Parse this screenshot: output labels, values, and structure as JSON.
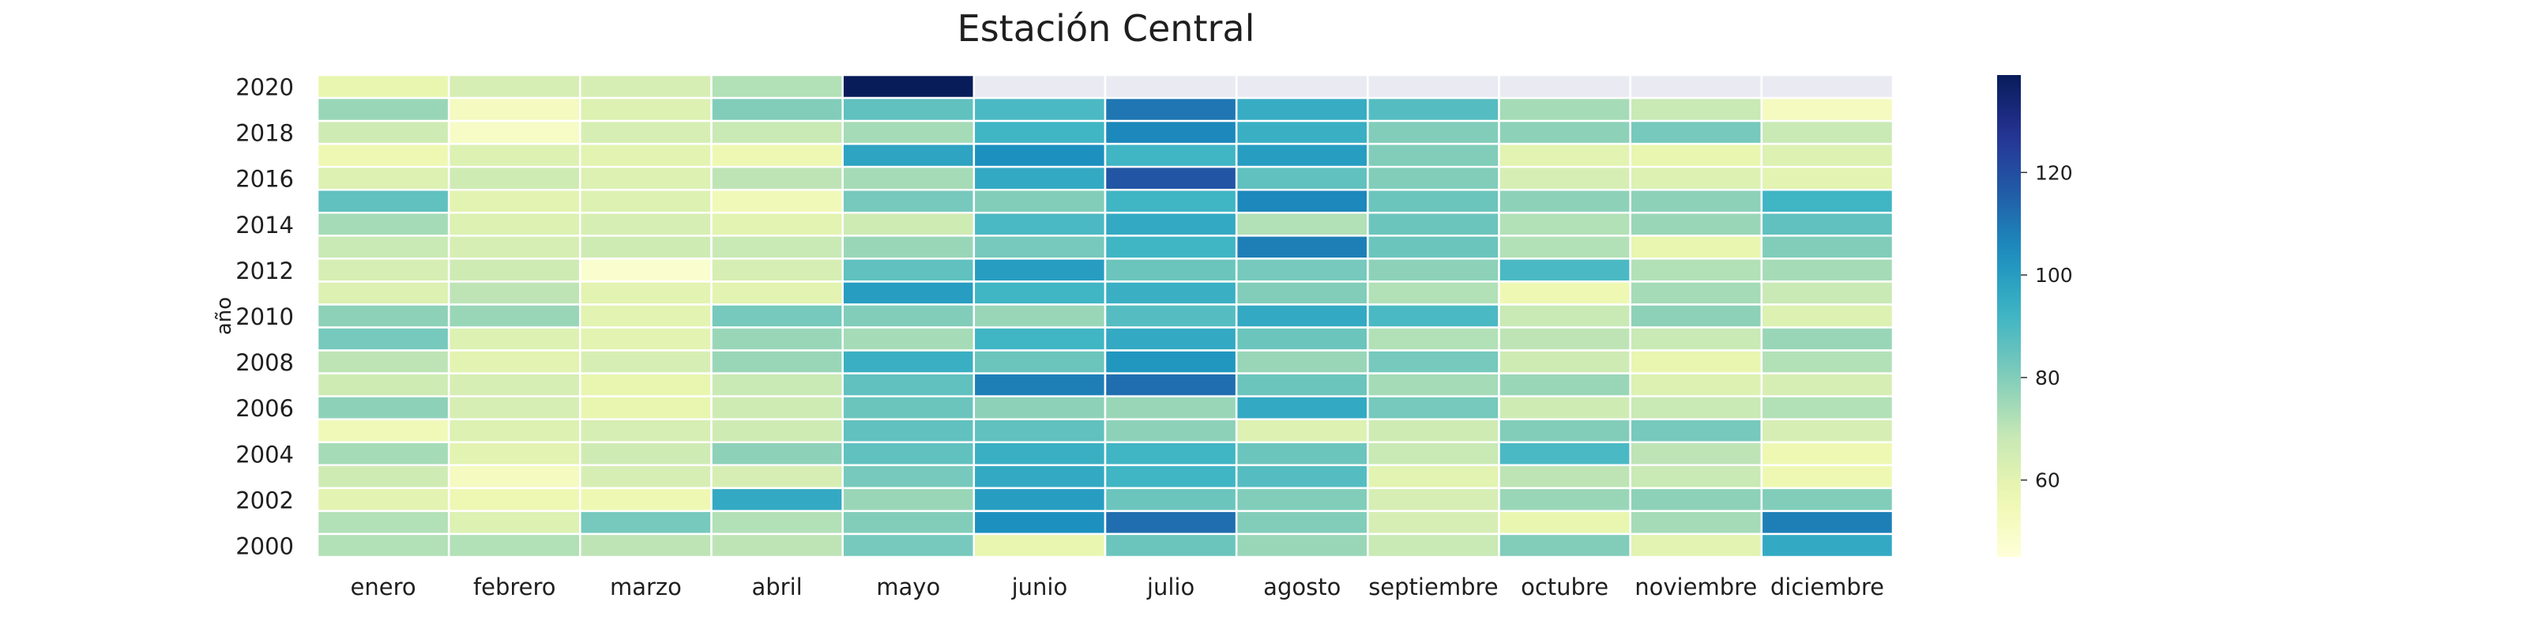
{
  "chart_data": {
    "type": "heatmap",
    "title": "Estación Central",
    "xlabel": "",
    "ylabel": "año",
    "months": [
      "enero",
      "febrero",
      "marzo",
      "abril",
      "mayo",
      "junio",
      "julio",
      "agosto",
      "septiembre",
      "octubre",
      "noviembre",
      "diciembre"
    ],
    "years": [
      2020,
      2019,
      2018,
      2017,
      2016,
      2015,
      2014,
      2013,
      2012,
      2011,
      2010,
      2009,
      2008,
      2007,
      2006,
      2005,
      2004,
      2003,
      2002,
      2001,
      2000
    ],
    "year_tick_labels": [
      "2020",
      "2018",
      "2016",
      "2014",
      "2012",
      "2010",
      "2008",
      "2006",
      "2004",
      "2002",
      "2000"
    ],
    "colormap": "YlGnBu",
    "colorbar": {
      "min": 45,
      "max": 139,
      "ticks": [
        60,
        80,
        100,
        120
      ]
    },
    "values": [
      [
        58,
        64,
        64,
        72,
        139,
        null,
        null,
        null,
        null,
        null,
        null,
        null
      ],
      [
        76,
        52,
        62,
        80,
        86,
        90,
        110,
        95,
        88,
        74,
        68,
        52
      ],
      [
        66,
        50,
        64,
        68,
        74,
        92,
        106,
        94,
        80,
        78,
        82,
        68
      ],
      [
        56,
        62,
        60,
        56,
        98,
        104,
        92,
        100,
        80,
        60,
        58,
        62
      ],
      [
        62,
        66,
        62,
        70,
        74,
        96,
        118,
        86,
        80,
        64,
        62,
        60
      ],
      [
        86,
        60,
        62,
        54,
        82,
        80,
        92,
        106,
        84,
        78,
        78,
        92
      ],
      [
        74,
        62,
        64,
        60,
        66,
        90,
        96,
        72,
        84,
        72,
        76,
        86
      ],
      [
        68,
        64,
        66,
        68,
        76,
        82,
        92,
        108,
        84,
        72,
        58,
        80
      ],
      [
        64,
        66,
        48,
        64,
        86,
        100,
        84,
        82,
        78,
        90,
        72,
        74
      ],
      [
        62,
        70,
        60,
        60,
        100,
        92,
        94,
        80,
        72,
        56,
        74,
        68
      ],
      [
        78,
        76,
        60,
        82,
        80,
        76,
        88,
        96,
        90,
        68,
        78,
        62
      ],
      [
        82,
        62,
        60,
        76,
        74,
        92,
        96,
        84,
        72,
        70,
        68,
        76
      ],
      [
        70,
        60,
        64,
        76,
        94,
        84,
        102,
        76,
        82,
        66,
        58,
        72
      ],
      [
        66,
        64,
        58,
        68,
        86,
        108,
        112,
        84,
        74,
        76,
        62,
        64
      ],
      [
        78,
        64,
        58,
        66,
        84,
        78,
        76,
        96,
        82,
        66,
        68,
        72
      ],
      [
        54,
        62,
        64,
        66,
        86,
        86,
        78,
        62,
        66,
        80,
        82,
        64
      ],
      [
        74,
        60,
        66,
        78,
        86,
        94,
        92,
        84,
        68,
        90,
        70,
        56
      ],
      [
        66,
        52,
        64,
        64,
        82,
        96,
        92,
        88,
        60,
        70,
        68,
        56
      ],
      [
        60,
        56,
        56,
        96,
        76,
        100,
        84,
        80,
        64,
        76,
        78,
        80
      ],
      [
        72,
        62,
        82,
        72,
        80,
        104,
        112,
        80,
        64,
        58,
        74,
        108
      ],
      [
        72,
        72,
        70,
        70,
        82,
        58,
        84,
        76,
        68,
        80,
        60,
        96
      ]
    ]
  }
}
